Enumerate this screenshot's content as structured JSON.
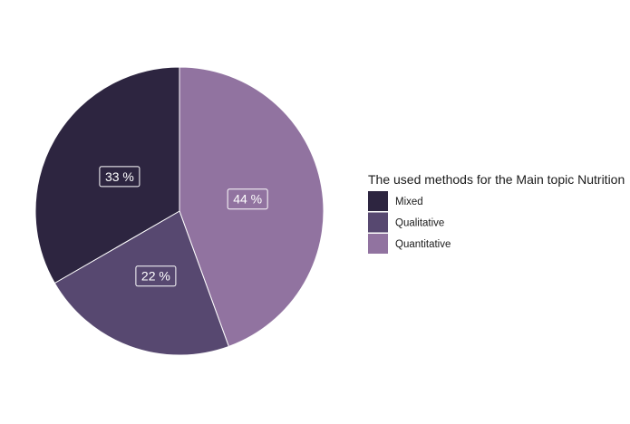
{
  "chart_data": {
    "type": "pie",
    "title": "",
    "legend": {
      "title": "The used methods for the Main topic Nutrition",
      "placement": "right"
    },
    "slices": [
      {
        "name": "Mixed",
        "value": 33,
        "label": "33 %",
        "color": "#2d2540"
      },
      {
        "name": "Qualitative",
        "value": 22,
        "label": "22 %",
        "color": "#574870"
      },
      {
        "name": "Quantitative",
        "value": 44,
        "label": "44 %",
        "color": "#9173a0"
      }
    ],
    "slice_border_color": "#ffffff",
    "label_box_border": "#ffffff"
  }
}
